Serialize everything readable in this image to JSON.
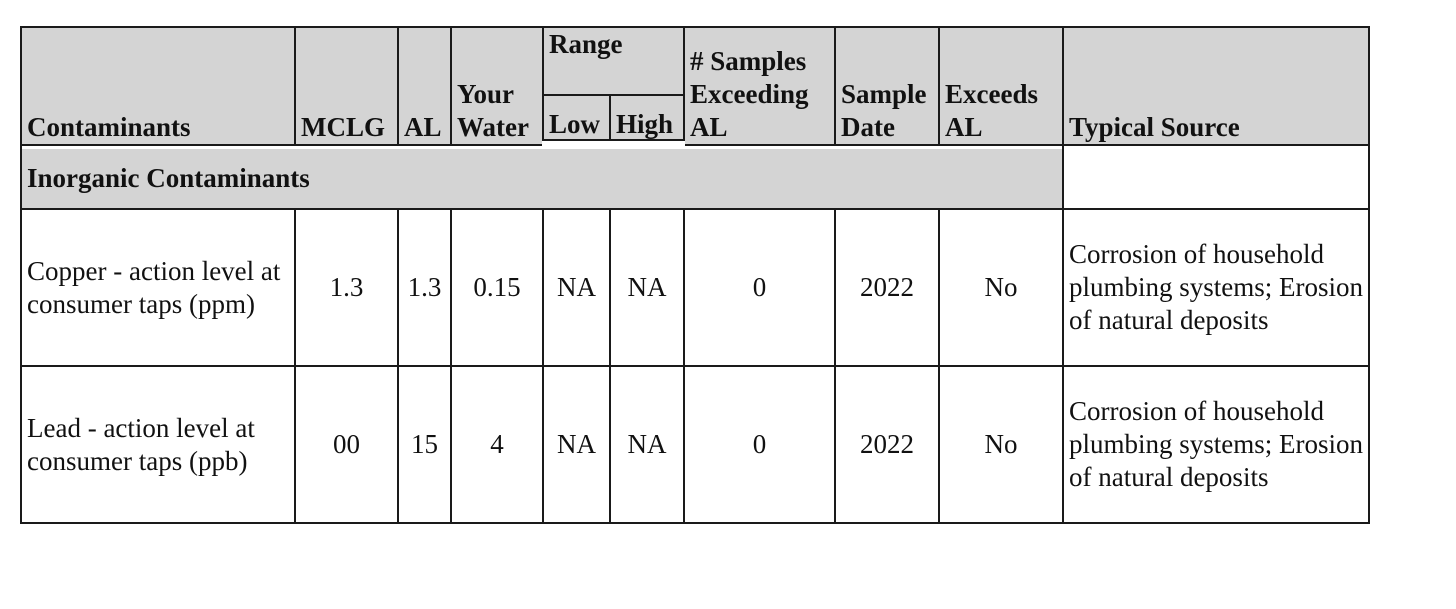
{
  "table": {
    "headers": {
      "contaminants": "Contaminants",
      "mclg": "MCLG",
      "al": "AL",
      "your_water": "Your Water",
      "range": "Range",
      "low": "Low",
      "high": "High",
      "samples_exceeding": "# Samples Exceeding AL",
      "sample_date": "Sample Date",
      "exceeds_al": "Exceeds AL",
      "typical_source": "Typical Source"
    },
    "section_label": "Inorganic Contaminants",
    "rows": [
      {
        "contaminant": "Copper - action level at consumer taps (ppm)",
        "mclg": "1.3",
        "al": "1.3",
        "your_water": "0.15",
        "low": "NA",
        "high": "NA",
        "samples_exceeding": "0",
        "sample_date": "2022",
        "exceeds_al": "No",
        "typical_source": "Corrosion of household plumbing systems; Erosion of natural deposits"
      },
      {
        "contaminant": "Lead - action level at consumer taps (ppb)",
        "mclg": "00",
        "al": "15",
        "your_water": "4",
        "low": "NA",
        "high": "NA",
        "samples_exceeding": "0",
        "sample_date": "2022",
        "exceeds_al": "No",
        "typical_source": "Corrosion of household plumbing systems; Erosion of natural deposits"
      }
    ]
  }
}
